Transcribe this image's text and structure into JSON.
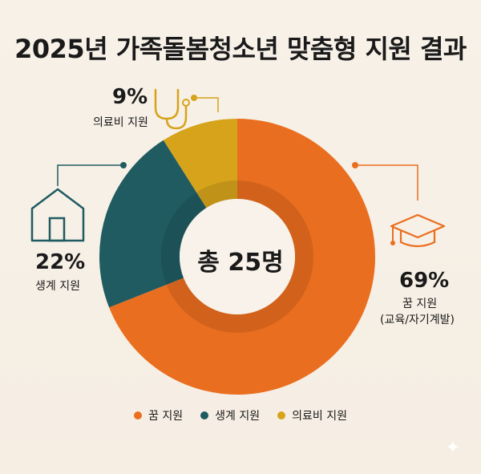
{
  "title": "2025년 가족돌봄청소년 맞춤형 지원 결과",
  "center": "총 25명",
  "chart_data": {
    "type": "pie",
    "donut": true,
    "slices": [
      {
        "label": "꿈 지원",
        "sublabel": "(교육/자기계발)",
        "value": 69,
        "display": "69%",
        "color": "#ea6e1f"
      },
      {
        "label": "생계 지원",
        "value": 22,
        "display": "22%",
        "color": "#1f5b61"
      },
      {
        "label": "의료비 지원",
        "value": 9,
        "display": "9%",
        "color": "#d6a31b"
      }
    ],
    "legend": [
      "꿈 지원",
      "생계 지원",
      "의료비 지원"
    ],
    "legend_placement": "bottom"
  },
  "icons": {
    "dream": "graduation-cap-icon",
    "living": "house-icon",
    "medical": "stethoscope-icon"
  }
}
